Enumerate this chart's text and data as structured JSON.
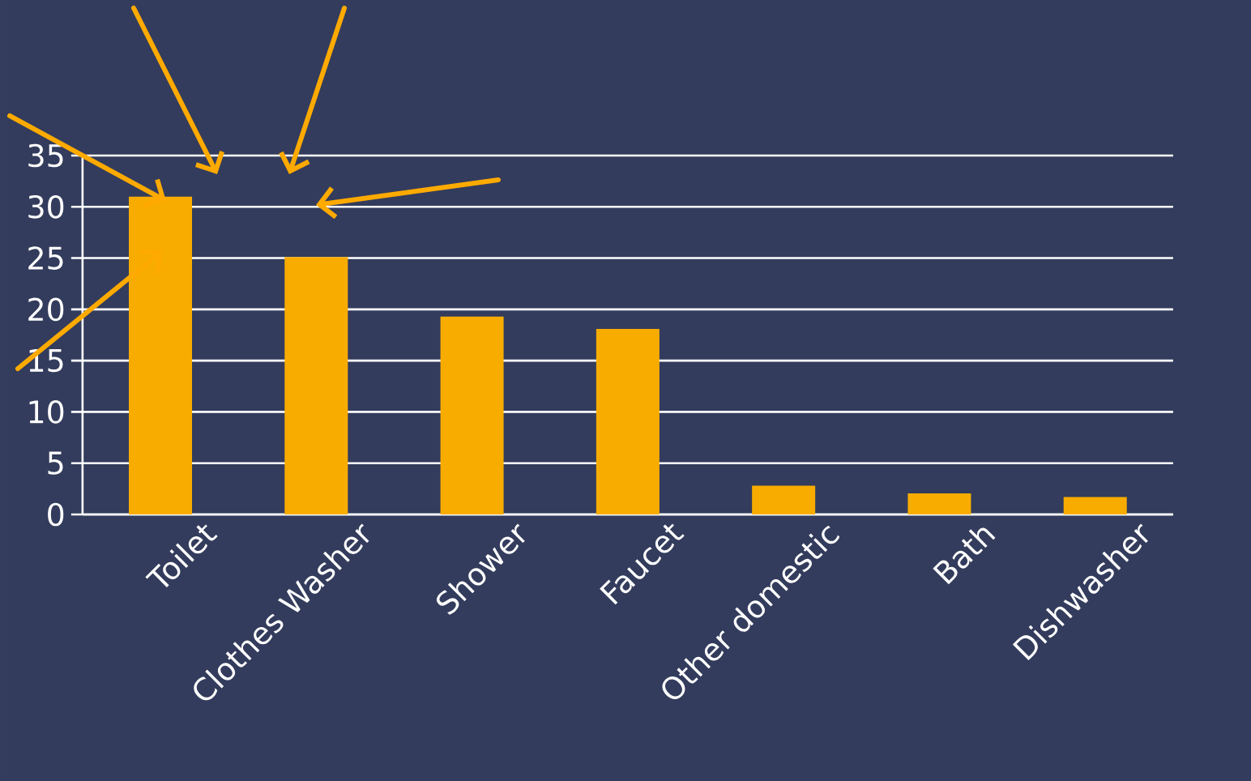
{
  "chart_data": {
    "type": "bar",
    "categories": [
      "Toilet",
      "Clothes Washer",
      "Shower",
      "Faucet",
      "Other domestic",
      "Bath",
      "Dishwasher"
    ],
    "values": [
      31,
      25.1,
      19.3,
      18.1,
      2.8,
      2.05,
      1.7
    ],
    "color": "#f9ac00",
    "ylim": [
      0,
      35
    ],
    "yticks": [
      0,
      5,
      10,
      15,
      20,
      25,
      30,
      35
    ],
    "grid": "y"
  }
}
